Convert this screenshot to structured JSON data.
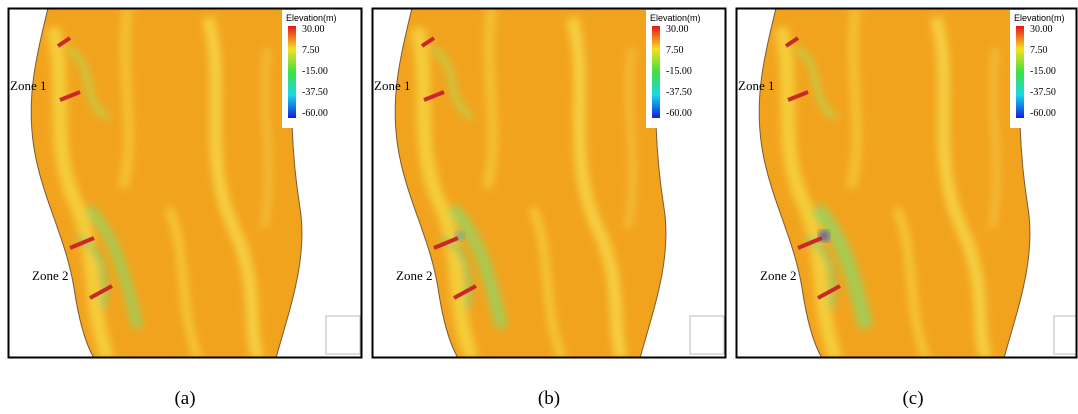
{
  "panels": [
    {
      "label": "(a)",
      "legend": {
        "title": "Elevation(m)",
        "ticks": [
          "30.00",
          "7.50",
          "-15.00",
          "-37.50",
          "-60.00"
        ]
      },
      "zones": [
        "Zone 1",
        "Zone 2"
      ]
    },
    {
      "label": "(b)",
      "legend": {
        "title": "Elevation(m)",
        "ticks": [
          "30.00",
          "7.50",
          "-15.00",
          "-37.50",
          "-60.00"
        ]
      },
      "zones": [
        "Zone 1",
        "Zone 2"
      ]
    },
    {
      "label": "(c)",
      "legend": {
        "title": "Elevation(m)",
        "ticks": [
          "30.00",
          "7.50",
          "-15.00",
          "-37.50",
          "-60.00"
        ]
      },
      "zones": [
        "Zone 1",
        "Zone 2"
      ]
    }
  ]
}
